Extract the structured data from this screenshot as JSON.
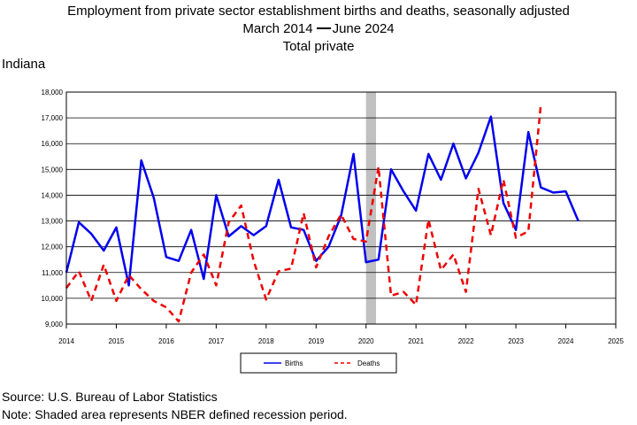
{
  "title": {
    "line1": "Employment from private sector establishment births and deaths, seasonally adjusted",
    "line2_start": "March 2014",
    "line2_end": "June 2024",
    "line3": "Total private"
  },
  "region": "Indiana",
  "source": "Source: U.S. Bureau of Labor Statistics",
  "note": "Note: Shaded area represents NBER defined recession period.",
  "chart_data": {
    "type": "line",
    "title": "Employment from private sector establishment births and deaths, seasonally adjusted",
    "xlim": [
      2014,
      2025
    ],
    "ylim": [
      9000,
      18000
    ],
    "x_ticks": [
      "2014",
      "2015",
      "2016",
      "2017",
      "2018",
      "2019",
      "2020",
      "2021",
      "2022",
      "2023",
      "2024",
      "2025"
    ],
    "y_ticks": [
      "9,000",
      "10,000",
      "11,000",
      "12,000",
      "13,000",
      "14,000",
      "15,000",
      "16,000",
      "17,000",
      "18,000"
    ],
    "grid": "horizontal",
    "legend_position": "bottom-center",
    "recession": {
      "start": 2020.0,
      "end": 2020.2,
      "color": "#c0c0c0"
    },
    "series": [
      {
        "name": "Births",
        "color": "#0000ee",
        "style": "solid",
        "x": [
          2014.0,
          2014.25,
          2014.5,
          2014.75,
          2015.0,
          2015.25,
          2015.5,
          2015.75,
          2016.0,
          2016.25,
          2016.5,
          2016.75,
          2017.0,
          2017.25,
          2017.5,
          2017.75,
          2018.0,
          2018.25,
          2018.5,
          2018.75,
          2019.0,
          2019.25,
          2019.5,
          2019.75,
          2020.0,
          2020.25,
          2020.5,
          2020.75,
          2021.0,
          2021.25,
          2021.5,
          2021.75,
          2022.0,
          2022.25,
          2022.5,
          2022.75,
          2023.0,
          2023.25,
          2023.5,
          2023.75,
          2024.0,
          2024.25
        ],
        "values": [
          11000,
          12950,
          12500,
          11850,
          12750,
          10500,
          15350,
          13900,
          11600,
          11450,
          12650,
          10750,
          14000,
          12400,
          12800,
          12450,
          12800,
          14600,
          12750,
          12650,
          11450,
          12000,
          13200,
          15600,
          11400,
          11500,
          15000,
          14150,
          13400,
          15600,
          14600,
          16000,
          14650,
          15650,
          17050,
          13700,
          12650,
          16450,
          14300,
          14100,
          14150,
          13000
        ]
      },
      {
        "name": "Deaths",
        "color": "#ee0000",
        "style": "dashed",
        "x": [
          2014.0,
          2014.25,
          2014.5,
          2014.75,
          2015.0,
          2015.25,
          2015.5,
          2015.75,
          2016.0,
          2016.25,
          2016.5,
          2016.75,
          2017.0,
          2017.25,
          2017.5,
          2017.75,
          2018.0,
          2018.25,
          2018.5,
          2018.75,
          2019.0,
          2019.25,
          2019.5,
          2019.75,
          2020.0,
          2020.25,
          2020.5,
          2020.75,
          2021.0,
          2021.25,
          2021.5,
          2021.75,
          2022.0,
          2022.25,
          2022.5,
          2022.75,
          2023.0,
          2023.25,
          2023.5
        ],
        "values": [
          10400,
          11050,
          9900,
          11300,
          9900,
          10900,
          10350,
          9900,
          9650,
          9100,
          11000,
          11700,
          10500,
          12950,
          13600,
          11450,
          9950,
          11050,
          11150,
          13300,
          11200,
          12400,
          13250,
          12300,
          12200,
          15100,
          10100,
          10250,
          9750,
          13050,
          11100,
          11700,
          10250,
          14250,
          12450,
          14600,
          12350,
          12600,
          17500
        ]
      }
    ]
  }
}
